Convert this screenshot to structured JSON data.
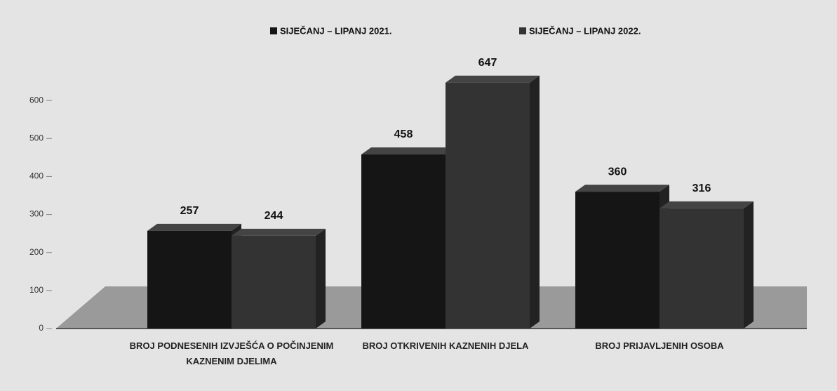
{
  "chart_data": {
    "type": "bar",
    "categories": [
      "BROJ PODNESENIH IZVJEŠĆA O POČINJENIM KAZNENIM DJELIMA",
      "BROJ OTKRIVENIH KAZNENIH DJELA",
      "BROJ PRIJAVLJENIH OSOBA"
    ],
    "series": [
      {
        "name": "SIJEČANJ – LIPANJ 2021.",
        "color": "#151515",
        "values": [
          257,
          458,
          360
        ]
      },
      {
        "name": "SIJEČANJ – LIPANJ 2022.",
        "color": "#333333",
        "values": [
          244,
          647,
          316
        ]
      }
    ],
    "ylim": [
      0,
      700
    ],
    "yticks": [
      0,
      100,
      200,
      300,
      400,
      500,
      600
    ],
    "legend": "top"
  }
}
